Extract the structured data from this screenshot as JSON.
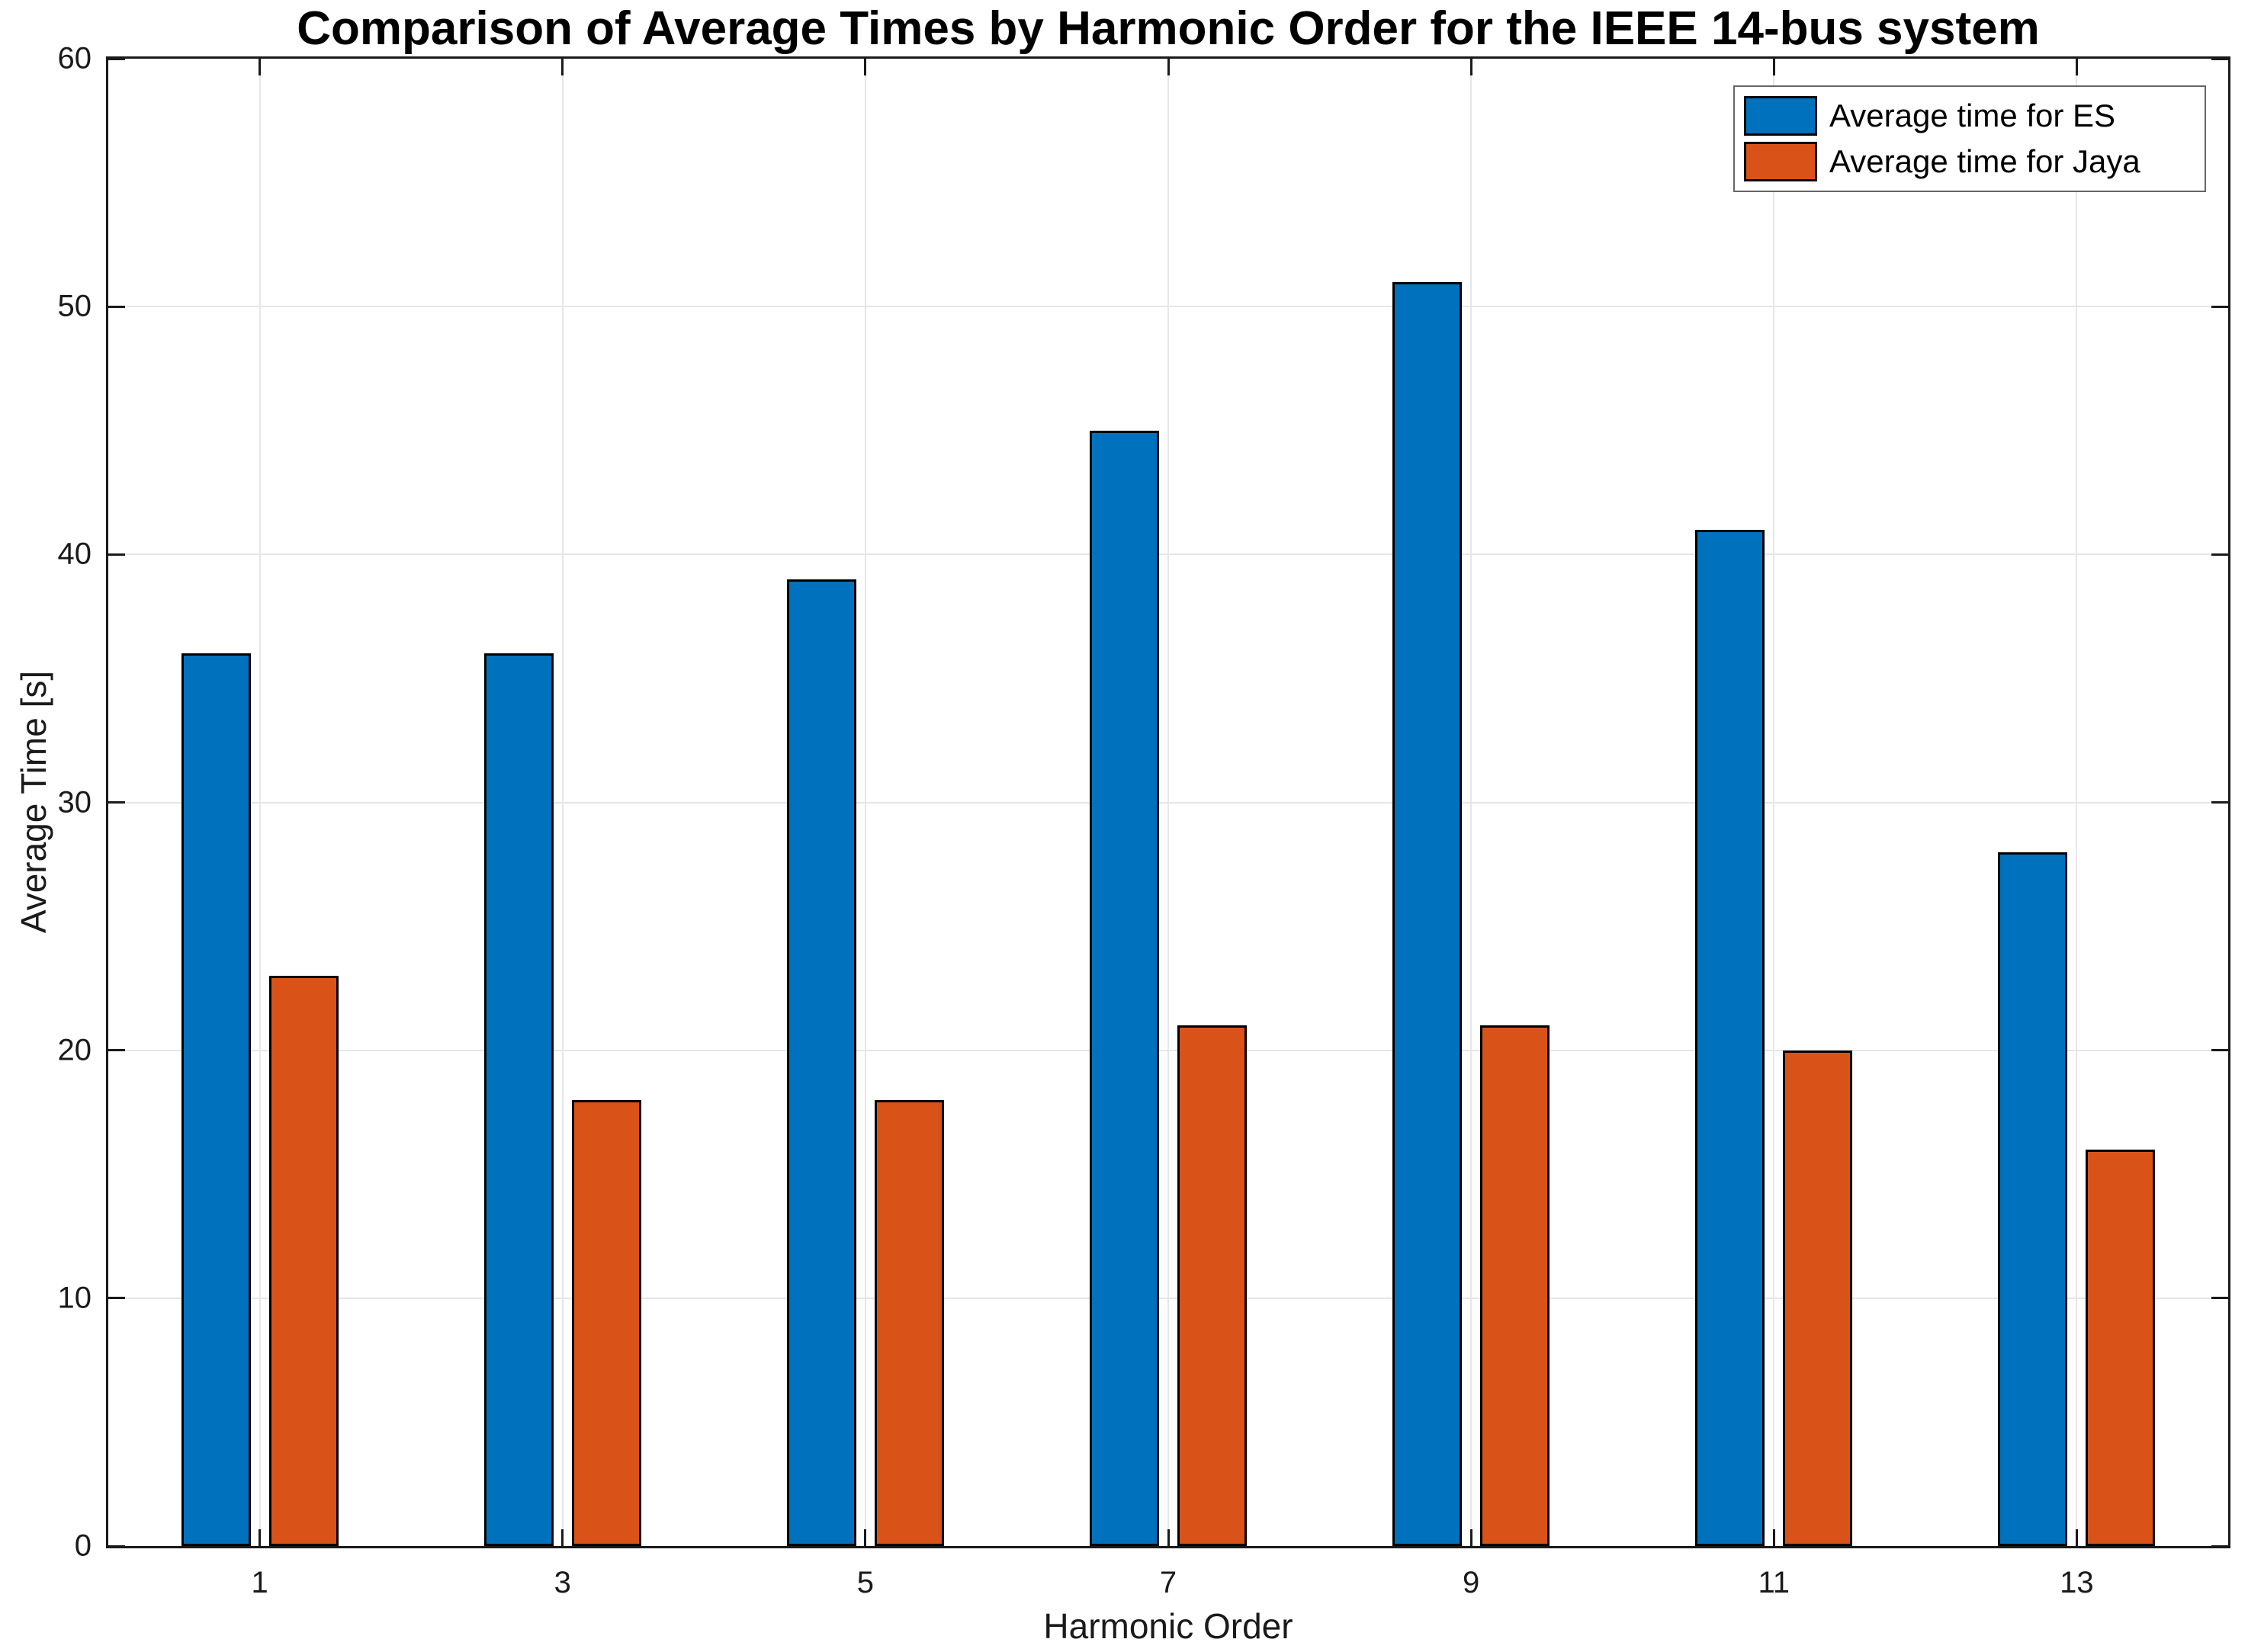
{
  "chart_data": {
    "type": "bar",
    "title": "Comparison of Average Times by Harmonic Order for the IEEE 14-bus system",
    "xlabel": "Harmonic Order",
    "ylabel": "Average Time [s]",
    "categories": [
      1,
      3,
      5,
      7,
      9,
      11,
      13
    ],
    "series": [
      {
        "name": "Average time for ES",
        "color": "#0072BD",
        "values": [
          36,
          36,
          39,
          45,
          51,
          41,
          28
        ]
      },
      {
        "name": "Average time for Jaya",
        "color": "#D95319",
        "values": [
          23,
          18,
          18,
          21,
          21,
          20,
          16
        ]
      }
    ],
    "ylim": [
      0,
      60
    ],
    "yticks": [
      0,
      10,
      20,
      30,
      40,
      50,
      60
    ],
    "xlim": [
      0,
      14
    ],
    "grid": true,
    "legend_position": "top-right",
    "bar_edge_color": "#000000",
    "grid_color": "#e6e6e6",
    "axis_color": "#1a1a1a",
    "background_color": "#ffffff"
  }
}
